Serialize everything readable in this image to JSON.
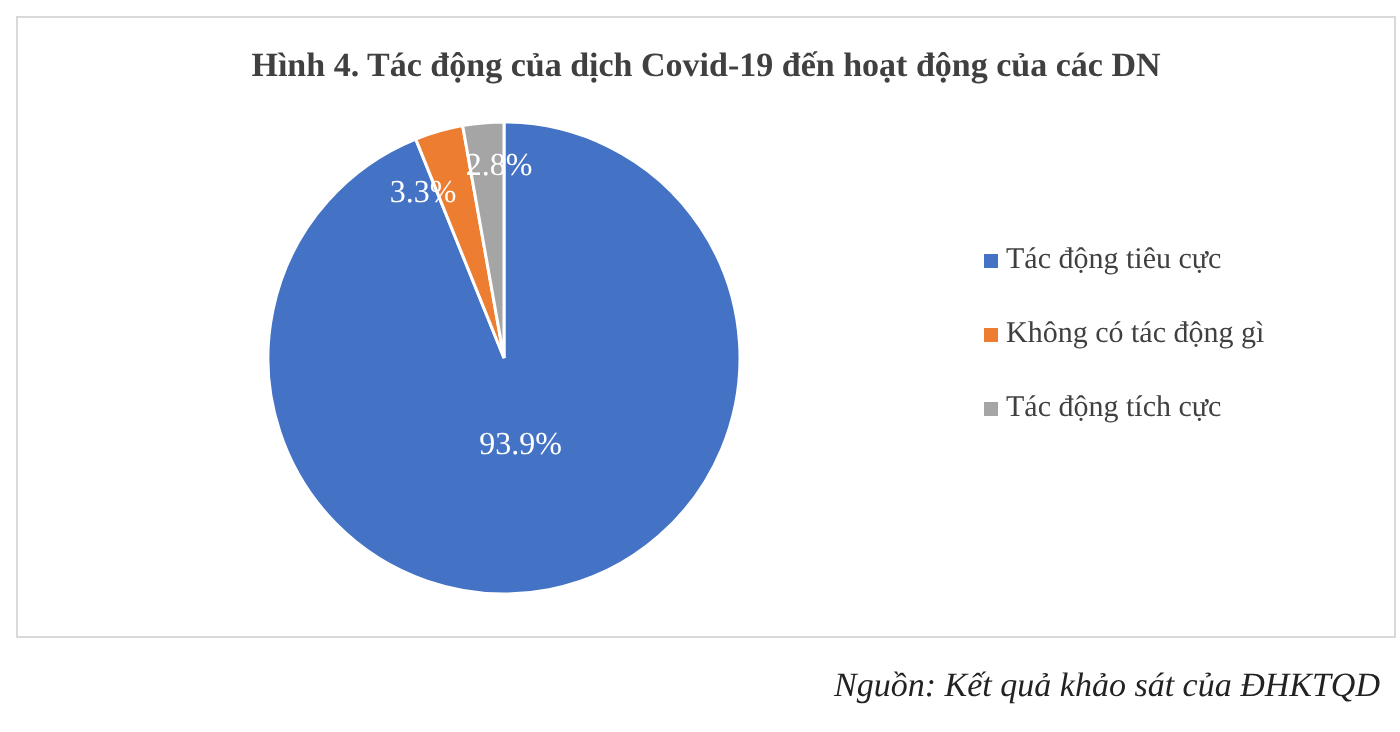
{
  "chart_data": {
    "type": "pie",
    "title": "Hình 4. Tác động của dịch Covid-19 đến hoạt động của các DN",
    "categories": [
      "Tác động tiêu cực",
      "Không có tác động gì",
      "Tác động tích cực"
    ],
    "values": [
      93.9,
      3.3,
      2.8
    ],
    "colors": [
      "#4472c4",
      "#ed7d31",
      "#a5a5a5"
    ],
    "value_labels": [
      "93.9%",
      "3.3%",
      "2.8%"
    ],
    "legend": "right",
    "annotations": [
      "Nguồn: Kết quả khảo sát của ĐHKTQD"
    ]
  }
}
